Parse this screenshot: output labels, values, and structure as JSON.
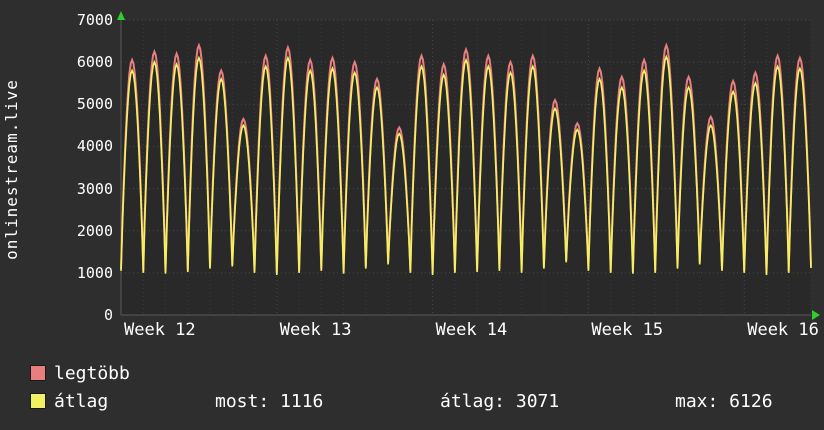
{
  "title": "onlinestream.live",
  "chart_data": {
    "type": "line",
    "title": "onlinestream.live",
    "ylim": [
      0,
      7000
    ],
    "y_ticks": [
      0,
      1000,
      2000,
      3000,
      4000,
      5000,
      6000,
      7000
    ],
    "x_labels": [
      "Week 12",
      "Week 13",
      "Week 14",
      "Week 15",
      "Week 16"
    ],
    "days_per_week": 7,
    "grid": true,
    "legend_position": "bottom-left",
    "valleys": [
      1050,
      1000,
      980,
      1020,
      1100,
      1150,
      1000,
      950,
      1000,
      1050,
      980,
      1100,
      1200,
      1000,
      950,
      1000,
      1020,
      1050,
      1000,
      1100,
      1250,
      1050,
      1000,
      980,
      1000,
      1100,
      1200,
      1050,
      1000,
      950,
      1000,
      1116
    ],
    "series": [
      {
        "name": "legtöbb",
        "color": "#e87e7e",
        "peaks": [
          6050,
          6250,
          6200,
          6400,
          5800,
          4650,
          6150,
          6350,
          6050,
          6100,
          6000,
          5600,
          4450,
          6150,
          5950,
          6300,
          6150,
          6000,
          6150,
          5100,
          4550,
          5850,
          5650,
          6050,
          6400,
          5650,
          4700,
          5550,
          5750,
          6150,
          6100
        ]
      },
      {
        "name": "átlag",
        "color": "#f2f163",
        "peaks": [
          5800,
          6000,
          5950,
          6100,
          5600,
          4500,
          5900,
          6100,
          5800,
          5850,
          5750,
          5400,
          4300,
          5900,
          5700,
          6050,
          5900,
          5750,
          5900,
          4900,
          4400,
          5600,
          5400,
          5800,
          6126,
          5400,
          4500,
          5300,
          5500,
          5900,
          5850
        ]
      }
    ]
  },
  "legend": {
    "series": [
      {
        "label": "legtöbb",
        "color": "#e87e7e"
      },
      {
        "label": "átlag",
        "color": "#f2f163"
      }
    ],
    "stats": [
      {
        "text": "most: 1116"
      },
      {
        "text": "átlag: 3071"
      },
      {
        "text": "max: 6126"
      }
    ]
  },
  "colors": {
    "background": "#2e2e2e",
    "plot_background": "#292929",
    "grid_major": "#4a4a4a",
    "grid_minor": "#3a3a3a",
    "axis": "#5a5a5a",
    "arrow": "#2ecc2e",
    "text": "#ffffff"
  }
}
